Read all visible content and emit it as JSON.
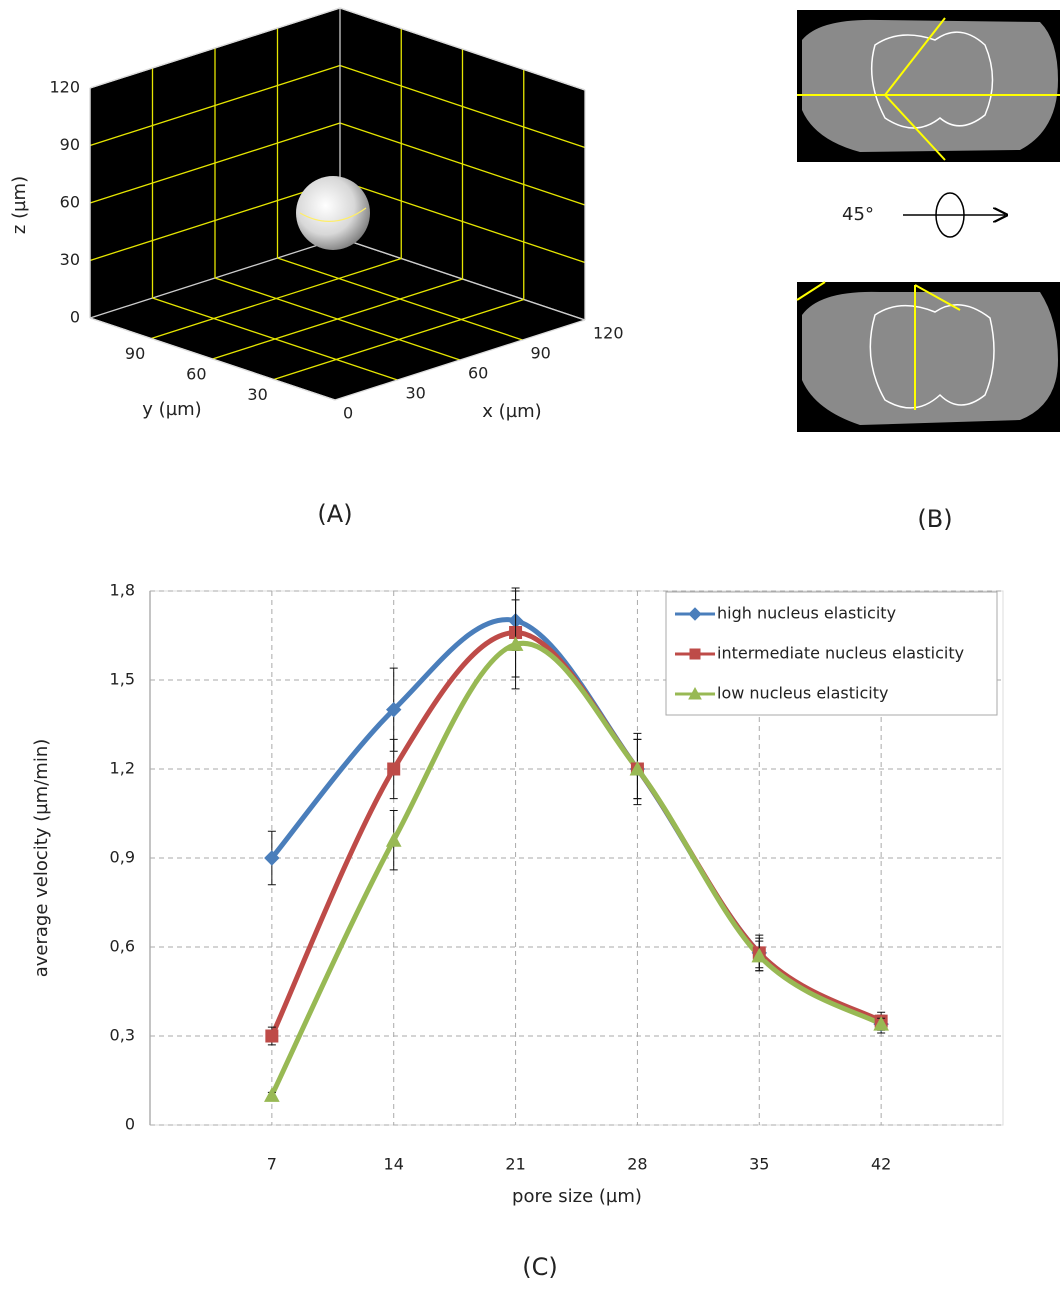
{
  "panel_a": {
    "label": "(A)",
    "x_label": "x (µm)",
    "y_label": "y (µm)",
    "z_label": "z (µm)",
    "xticks": [
      0,
      30,
      60,
      90,
      120
    ],
    "yticks": [
      30,
      60,
      90
    ],
    "zticks": [
      0,
      30,
      60,
      90,
      120
    ]
  },
  "panel_b": {
    "label": "(B)",
    "rotation": "45°"
  },
  "panel_c": {
    "label": "(C)"
  },
  "chart_data": {
    "type": "line",
    "x_label": "pore size (µm)",
    "y_label": "average velocity (µm/min)",
    "x": [
      7,
      14,
      21,
      28,
      35,
      42
    ],
    "xlim": [
      0,
      49
    ],
    "xticks": [
      7,
      14,
      21,
      28,
      35,
      42
    ],
    "ylim": [
      0,
      1.8
    ],
    "yticks": [
      0,
      {
        "value": 0.3,
        "label": "0,3"
      },
      {
        "value": 0.6,
        "label": "0,6"
      },
      {
        "value": 0.9,
        "label": "0,9"
      },
      {
        "value": 1.2,
        "label": "1,2"
      },
      {
        "value": 1.5,
        "label": "1,5"
      },
      {
        "value": 1.8,
        "label": "1,8"
      }
    ],
    "grid": true,
    "legend": "upper right",
    "series": [
      {
        "name": "high nucleus elasticity",
        "color": "#4a7ebb",
        "marker": "diamond",
        "values": [
          0.9,
          1.4,
          1.7,
          1.2,
          0.58,
          0.34
        ],
        "errors": [
          0.09,
          0.14,
          0.1,
          0.12,
          0.06,
          0.03
        ]
      },
      {
        "name": "intermediate nucleus elasticity",
        "color": "#be4b48",
        "marker": "square",
        "values": [
          0.3,
          1.2,
          1.66,
          1.2,
          0.58,
          0.35
        ],
        "errors": [
          0.03,
          0.1,
          0.15,
          0.1,
          0.05,
          0.03
        ]
      },
      {
        "name": "low nucleus elasticity",
        "color": "#98b954",
        "marker": "triangle",
        "values": [
          0.1,
          0.96,
          1.62,
          1.2,
          0.57,
          0.34
        ],
        "errors": [
          0.01,
          0.1,
          0.15,
          0.1,
          0.05,
          0.02
        ]
      }
    ]
  }
}
